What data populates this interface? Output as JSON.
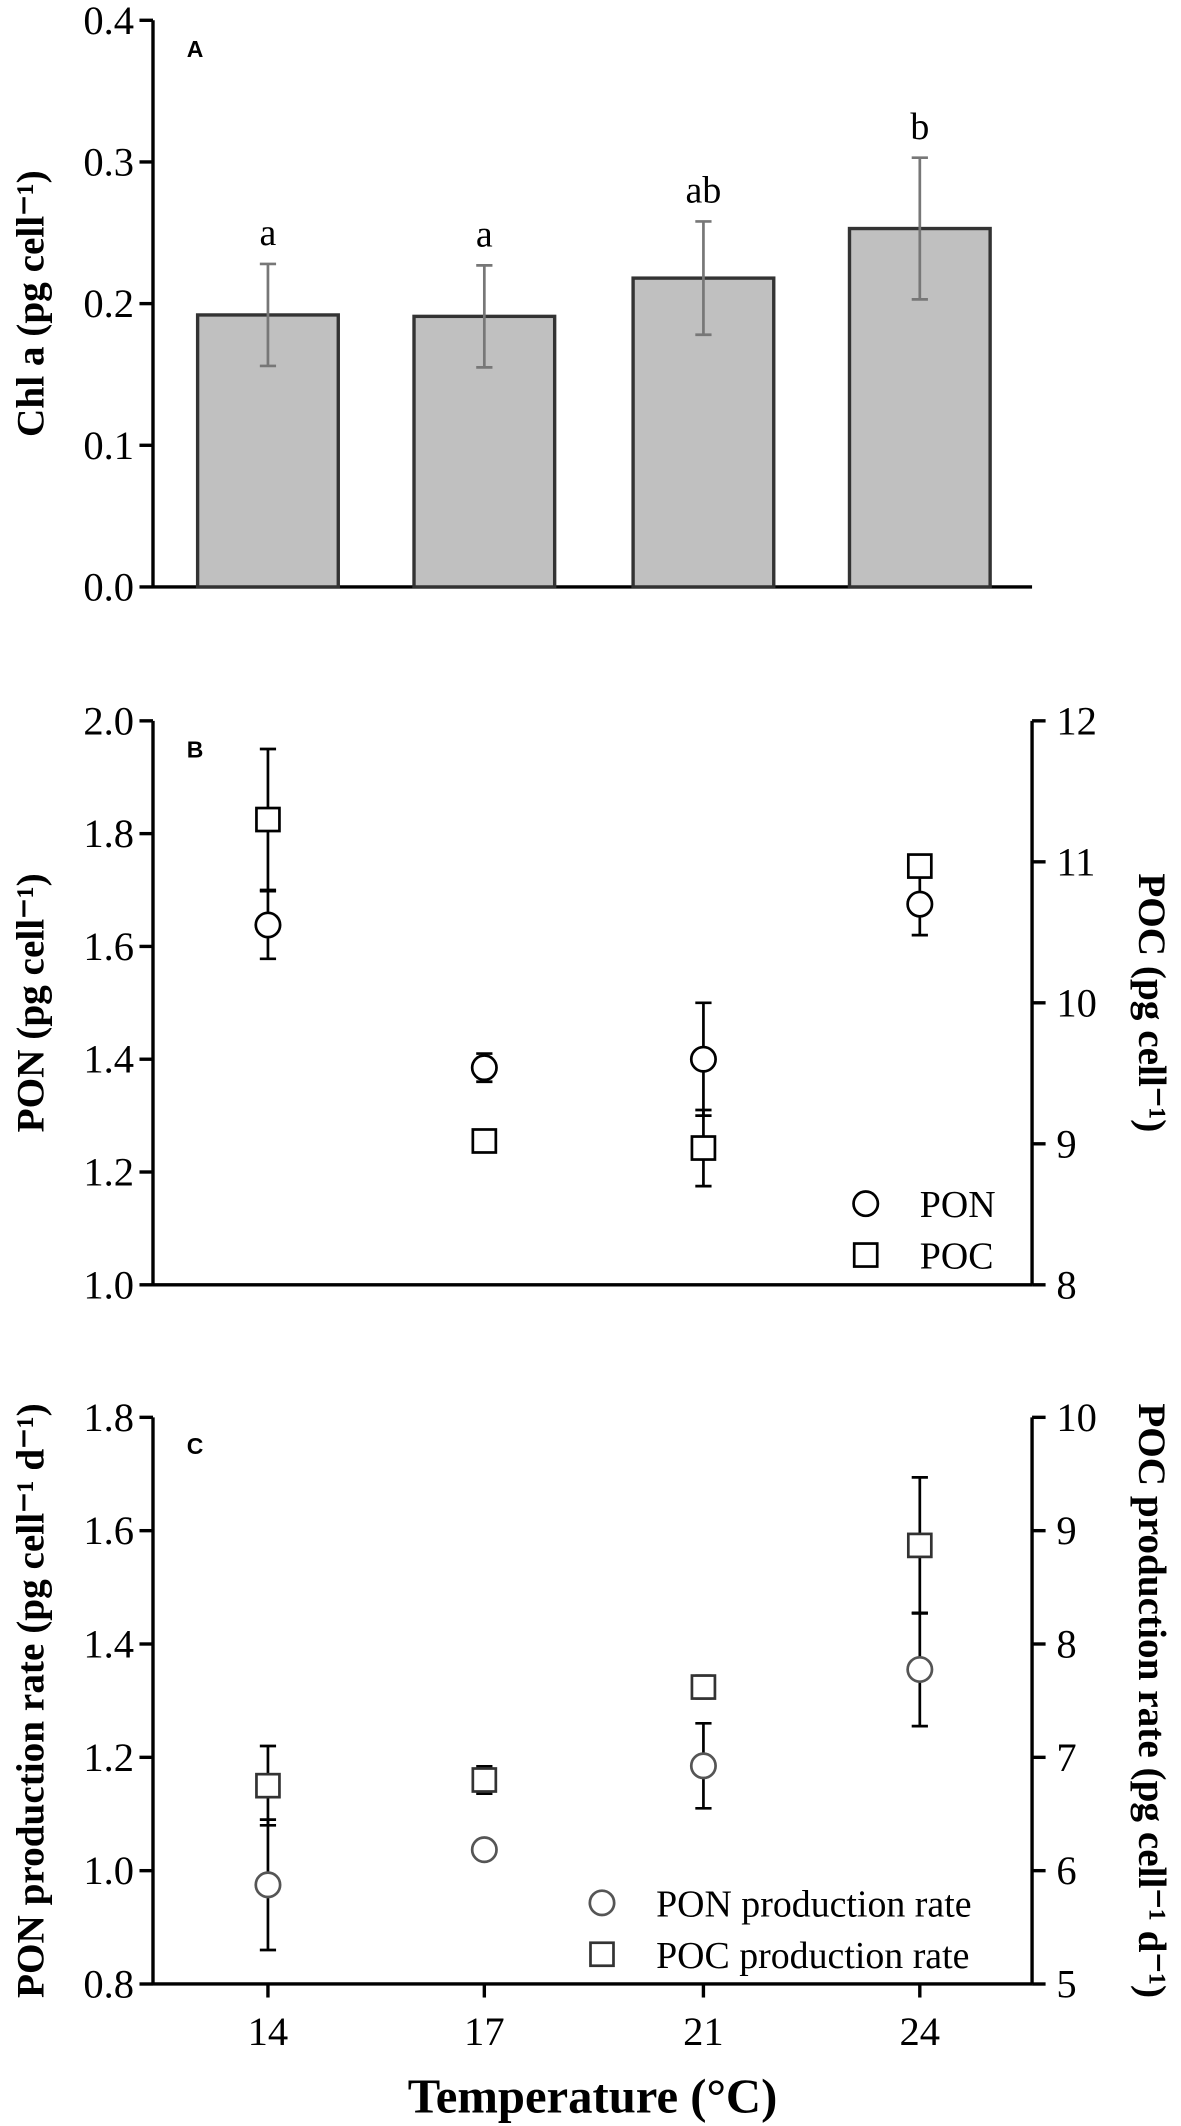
{
  "chart_data": [
    {
      "type": "bar",
      "panel_label": "A",
      "y_label": "Chl a (pg cell⁻¹)",
      "ylim": [
        0,
        0.4
      ],
      "yticks": [
        {
          "value": 0,
          "label": "0.0"
        },
        0.1,
        0.2,
        0.3,
        0.4
      ],
      "values": [
        0.192,
        0.191,
        0.218,
        0.253
      ],
      "errors": [
        0.036,
        0.036,
        0.04,
        0.05
      ],
      "annotations": [
        "a",
        "a",
        "ab",
        "b"
      ],
      "color": "#c0c0c0"
    },
    {
      "type": "scatter",
      "panel_label": "B",
      "y_label": "PON (pg cell⁻¹)",
      "y2_label": "POC (pg cell⁻¹)",
      "ylim": [
        1.0,
        2.0
      ],
      "yticks": [
        {
          "value": 1,
          "label": "1.0"
        },
        1.2,
        1.4,
        1.6,
        1.8,
        {
          "value": 2,
          "label": "2.0"
        }
      ],
      "y2lim": [
        8,
        12
      ],
      "y2ticks": [
        8,
        9,
        10,
        11,
        12
      ],
      "legend": "lower right",
      "series": [
        {
          "name": "PON",
          "marker": "circle",
          "color": "#000000",
          "values": [
            1.638,
            1.385,
            1.4,
            1.675
          ],
          "errors": [
            0.06,
            0.025,
            0.1,
            0.055
          ]
        },
        {
          "name": "POC",
          "marker": "square",
          "color": "#000000",
          "axis": "y2",
          "values": [
            11.3,
            9.02,
            8.97,
            10.97
          ],
          "errors": [
            0.5,
            0.04,
            0.27,
            0.05
          ]
        }
      ]
    },
    {
      "type": "scatter",
      "panel_label": "C",
      "y_label": "PON production rate (pg cell⁻¹ d⁻¹)",
      "y2_label": "POC production rate (pg cell⁻¹ d⁻¹)",
      "x_label": "Temperature (°C)",
      "categories": [
        "14",
        "17",
        "21",
        "24"
      ],
      "ylim": [
        0.8,
        1.8
      ],
      "yticks": [
        0.8,
        {
          "value": 1,
          "label": "1.0"
        },
        1.2,
        1.4,
        1.6,
        1.8
      ],
      "y2lim": [
        5,
        10
      ],
      "y2ticks": [
        5,
        6,
        7,
        8,
        9,
        10
      ],
      "legend": "lower right",
      "series": [
        {
          "name": "PON production rate",
          "marker": "circle",
          "color": "#555555",
          "values": [
            0.975,
            1.037,
            1.185,
            1.355
          ],
          "errors": [
            0.115,
            0.015,
            0.075,
            0.1
          ]
        },
        {
          "name": "POC production rate",
          "marker": "square",
          "color": "#333333",
          "axis": "y2",
          "values": [
            6.75,
            6.8,
            7.62,
            8.87
          ],
          "errors": [
            0.35,
            0.12,
            0.1,
            0.6
          ]
        }
      ]
    }
  ]
}
